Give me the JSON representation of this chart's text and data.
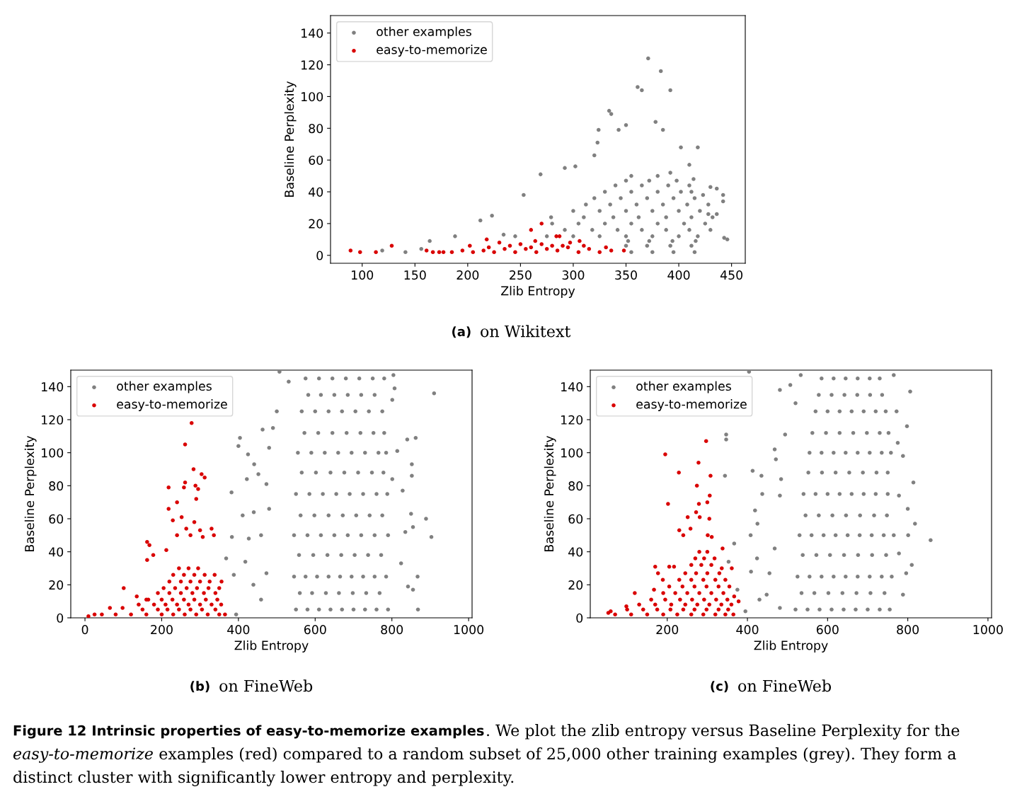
{
  "chart_data": [
    {
      "type": "scatter",
      "xlabel": "Zlib Entropy",
      "ylabel": "Baseline Perplexity",
      "xlim": [
        70,
        463
      ],
      "ylim": [
        -5,
        151
      ],
      "xticks": [
        100,
        150,
        200,
        250,
        300,
        350,
        400,
        450
      ],
      "yticks": [
        0,
        20,
        40,
        60,
        80,
        100,
        120,
        140
      ],
      "legend": "top left",
      "marker": "circle",
      "annotations": [
        "(a)",
        "on Wikitext"
      ],
      "series": [
        {
          "name": "other examples",
          "color": "#808080",
          "x": [
            371,
            383,
            361,
            365,
            392,
            334,
            336,
            378,
            324,
            350,
            343,
            418,
            402,
            323,
            320,
            385,
            292,
            269,
            302,
            253,
            223,
            212,
            188,
            164,
            119,
            141,
            156,
            430,
            436,
            442,
            442,
            446,
            443,
            428,
            436,
            423,
            410,
            414,
            392,
            234,
            279,
            355,
            375,
            395,
            415,
            350,
            370,
            392,
            412,
            245,
            275,
            300,
            325,
            350,
            375,
            400,
            418,
            280,
            305,
            330,
            355,
            380,
            405,
            425,
            300,
            325,
            350,
            375,
            400,
            420,
            320,
            345,
            370,
            395,
            415,
            340,
            365,
            390,
            410,
            355,
            380,
            352,
            372,
            394,
            416,
            292,
            318,
            342,
            365,
            388,
            410,
            430,
            310,
            338,
            362,
            388,
            412,
            432,
            312,
            335,
            360,
            385,
            408,
            428,
            330,
            355,
            380,
            402,
            412,
            350,
            372,
            398
          ],
          "values": [
            124,
            116,
            106,
            104,
            104,
            91,
            89,
            84,
            79,
            82,
            79,
            68,
            68,
            71,
            63,
            79,
            55,
            51,
            56,
            38,
            25,
            22,
            12,
            9,
            3,
            2,
            4,
            43,
            42,
            38,
            34,
            10,
            11,
            26,
            26,
            38,
            57,
            48,
            52,
            13,
            24,
            2,
            2,
            2,
            2,
            6,
            6,
            6,
            6,
            12,
            12,
            12,
            12,
            12,
            12,
            12,
            12,
            20,
            20,
            20,
            20,
            20,
            20,
            20,
            28,
            28,
            28,
            28,
            28,
            28,
            36,
            36,
            36,
            36,
            36,
            44,
            44,
            44,
            44,
            50,
            50,
            9,
            9,
            9,
            9,
            16,
            16,
            16,
            16,
            16,
            16,
            16,
            24,
            24,
            24,
            24,
            24,
            24,
            32,
            32,
            32,
            32,
            32,
            32,
            40,
            40,
            40,
            40,
            40,
            47,
            47,
            47
          ]
        },
        {
          "name": "easy-to-memorize",
          "color": "#d90000",
          "x": [
            89,
            98,
            113,
            128,
            161,
            167,
            173,
            177,
            270,
            260,
            218,
            284,
            287,
            306,
            348,
            336,
            202,
            230,
            264,
            331,
            297,
            185,
            195,
            205,
            215,
            225,
            235,
            245,
            255,
            265,
            275,
            285,
            295,
            305,
            315,
            325,
            240,
            250,
            270,
            290,
            310,
            220,
            280,
            260
          ],
          "values": [
            3,
            2,
            2,
            6,
            3,
            2,
            2,
            2,
            20,
            16,
            10,
            12,
            12,
            9,
            3,
            3,
            6,
            8,
            9,
            5,
            8,
            2,
            3,
            2,
            3,
            2,
            4,
            2,
            4,
            2,
            4,
            3,
            5,
            2,
            4,
            2,
            6,
            7,
            7,
            6,
            6,
            5,
            6,
            5
          ]
        }
      ]
    },
    {
      "type": "scatter",
      "xlabel": "Zlib Entropy",
      "ylabel": "Baseline Perplexity",
      "xlim": [
        -37,
        1009
      ],
      "ylim": [
        0,
        150
      ],
      "xticks": [
        0,
        200,
        400,
        600,
        800,
        1000
      ],
      "yticks": [
        0,
        20,
        40,
        60,
        80,
        100,
        120,
        140
      ],
      "legend": "top left",
      "marker": "circle",
      "annotations": [
        "(b)",
        "on FineWeb"
      ],
      "series": [
        {
          "name": "other examples",
          "color": "#808080",
          "x": [
            910,
            889,
            903,
            862,
            840,
            867,
            868,
            382,
            404,
            400,
            425,
            383,
            368,
            388,
            394,
            441,
            452,
            422,
            411,
            440,
            427,
            418,
            439,
            463,
            490,
            507,
            531,
            500,
            480,
            473,
            480,
            459,
            473,
            459,
            804,
            807,
            801,
            814,
            801,
            828,
            852,
            852,
            850,
            855,
            855,
            824,
            842,
            835,
            550,
            580,
            610,
            640,
            670,
            700,
            730,
            760,
            790,
            545,
            575,
            605,
            635,
            665,
            695,
            725,
            755,
            785,
            545,
            580,
            615,
            650,
            685,
            720,
            755,
            790,
            550,
            585,
            620,
            655,
            690,
            725,
            760,
            788,
            555,
            590,
            625,
            660,
            695,
            730,
            765,
            785,
            565,
            600,
            635,
            670,
            705,
            740,
            775,
            575,
            610,
            645,
            680,
            715,
            750,
            780,
            560,
            592,
            628,
            662,
            698,
            733,
            768,
            558,
            595,
            632,
            668,
            703,
            738,
            772,
            562,
            598,
            635,
            672,
            707,
            742,
            775,
            565,
            602,
            640,
            676,
            712,
            748,
            778,
            572,
            608,
            645,
            682,
            718,
            752,
            780,
            582,
            615,
            650,
            685,
            720,
            755
          ],
          "values": [
            136,
            60,
            49,
            109,
            108,
            25,
            5,
            76,
            109,
            104,
            99,
            49,
            36,
            26,
            2,
            93,
            87,
            84,
            62,
            64,
            48,
            34,
            20,
            114,
            115,
            149,
            143,
            125,
            103,
            81,
            66,
            50,
            27,
            11,
            147,
            139,
            132,
            101,
            84,
            77,
            93,
            86,
            63,
            55,
            17,
            33,
            19,
            52,
            5,
            5,
            5,
            5,
            5,
            5,
            5,
            5,
            5,
            25,
            25,
            25,
            25,
            25,
            25,
            25,
            25,
            25,
            50,
            50,
            50,
            50,
            50,
            50,
            50,
            50,
            75,
            75,
            75,
            75,
            75,
            75,
            75,
            75,
            100,
            100,
            100,
            100,
            100,
            100,
            100,
            100,
            125,
            125,
            125,
            125,
            125,
            125,
            125,
            145,
            145,
            145,
            145,
            145,
            145,
            145,
            15,
            15,
            15,
            15,
            15,
            15,
            15,
            38,
            38,
            38,
            38,
            38,
            38,
            38,
            62,
            62,
            62,
            62,
            62,
            62,
            62,
            88,
            88,
            88,
            88,
            88,
            88,
            88,
            112,
            112,
            112,
            112,
            112,
            112,
            112,
            135,
            135,
            135,
            135,
            135,
            135
          ]
        },
        {
          "name": "easy-to-memorize",
          "color": "#d90000",
          "x": [
            278,
            261,
            283,
            304,
            312,
            218,
            261,
            258,
            288,
            295,
            240,
            218,
            290,
            252,
            285,
            229,
            240,
            275,
            264,
            300,
            307,
            330,
            336,
            162,
            168,
            162,
            178,
            212,
            356,
            101,
            9,
            25,
            44,
            65,
            98,
            135,
            160,
            80,
            120,
            160,
            200,
            230,
            260,
            290,
            320,
            350,
            365,
            140,
            180,
            210,
            240,
            270,
            300,
            330,
            355,
            190,
            220,
            250,
            280,
            310,
            340,
            220,
            250,
            275,
            300,
            325,
            245,
            270,
            295,
            150,
            190,
            215,
            245,
            275,
            305,
            340,
            165,
            200,
            228,
            258,
            285,
            315,
            345,
            205,
            235,
            265,
            292,
            322,
            350,
            230,
            258,
            285,
            312,
            338
          ],
          "values": [
            118,
            105,
            90,
            87,
            85,
            79,
            82,
            79,
            80,
            78,
            70,
            66,
            72,
            61,
            58,
            59,
            50,
            50,
            54,
            53,
            49,
            54,
            50,
            46,
            44,
            35,
            38,
            41,
            22,
            18,
            1,
            2,
            2,
            6,
            6,
            13,
            11,
            2,
            2,
            2,
            2,
            2,
            2,
            2,
            2,
            2,
            2,
            8,
            8,
            8,
            8,
            8,
            8,
            8,
            8,
            15,
            15,
            15,
            15,
            15,
            15,
            22,
            22,
            22,
            22,
            22,
            30,
            30,
            30,
            5,
            5,
            5,
            5,
            5,
            5,
            5,
            11,
            11,
            11,
            11,
            11,
            11,
            11,
            18,
            18,
            18,
            18,
            18,
            18,
            26,
            26,
            26,
            26,
            26
          ]
        }
      ]
    },
    {
      "type": "scatter",
      "xlabel": "Zlib Entropy",
      "ylabel": "Baseline Perplexity",
      "xlim": [
        8,
        1009
      ],
      "ylim": [
        0,
        150
      ],
      "xticks": [
        200,
        400,
        600,
        800,
        1000
      ],
      "yticks": [
        0,
        20,
        40,
        60,
        80,
        100,
        120,
        140
      ],
      "legend": "top left",
      "marker": "circle",
      "annotations": [
        "(c)",
        "on FineWeb",
        "Figure 12",
        "Intrinsic properties of easy-to-memorize examples",
        ". We plot the zlib entropy versus Baseline Perplexity for the",
        "easy-to-memorize",
        "examples (red) compared to a random subset of 25,000 other training examples (grey). They form a",
        "distinct cluster with significantly lower entropy and perplexity."
      ],
      "series": [
        {
          "name": "other examples",
          "color": "#808080",
          "x": [
            857,
            814,
            810,
            806,
            798,
            818,
            800,
            788,
            801,
            796,
            788,
            765,
            404,
            347,
            347,
            344,
            367,
            353,
            375,
            395,
            413,
            435,
            437,
            419,
            425,
            408,
            424,
            409,
            430,
            468,
            481,
            507,
            471,
            481,
            484,
            468,
            455,
            448,
            481,
            533,
            520,
            494,
            772,
            775,
            778,
            778,
            520,
            550,
            580,
            610,
            640,
            670,
            700,
            730,
            755,
            525,
            555,
            585,
            615,
            645,
            675,
            705,
            735,
            760,
            530,
            560,
            590,
            620,
            650,
            680,
            710,
            740,
            765,
            540,
            570,
            600,
            630,
            660,
            690,
            720,
            750,
            555,
            585,
            615,
            645,
            675,
            705,
            735,
            758,
            570,
            600,
            630,
            660,
            690,
            720,
            745,
            585,
            615,
            645,
            675,
            705,
            730,
            535,
            567,
            602,
            637,
            672,
            707,
            742,
            538,
            572,
            606,
            641,
            676,
            711,
            746,
            545,
            578,
            612,
            646,
            681,
            716,
            748,
            552,
            586,
            620,
            654,
            688,
            722,
            750,
            562,
            596,
            630,
            664,
            698,
            730,
            752,
            578,
            610,
            642,
            674,
            706,
            736
          ],
          "values": [
            47,
            82,
            32,
            137,
            116,
            57,
            66,
            98,
            50,
            27,
            14,
            147,
            149,
            111,
            108,
            86,
            45,
            34,
            17,
            4,
            89,
            86,
            75,
            65,
            57,
            50,
            36,
            28,
            11,
            102,
            138,
            141,
            96,
            74,
            84,
            42,
            27,
            14,
            6,
            147,
            130,
            111,
            125,
            106,
            74,
            39,
            5,
            5,
            5,
            5,
            5,
            5,
            5,
            5,
            5,
            25,
            25,
            25,
            25,
            25,
            25,
            25,
            25,
            25,
            50,
            50,
            50,
            50,
            50,
            50,
            50,
            50,
            50,
            75,
            75,
            75,
            75,
            75,
            75,
            75,
            75,
            100,
            100,
            100,
            100,
            100,
            100,
            100,
            100,
            125,
            125,
            125,
            125,
            125,
            125,
            125,
            145,
            145,
            145,
            145,
            145,
            145,
            15,
            15,
            15,
            15,
            15,
            15,
            15,
            38,
            38,
            38,
            38,
            38,
            38,
            38,
            62,
            62,
            62,
            62,
            62,
            62,
            62,
            88,
            88,
            88,
            88,
            88,
            88,
            88,
            112,
            112,
            112,
            112,
            112,
            112,
            112,
            135,
            135,
            135,
            135,
            135,
            135
          ]
        },
        {
          "name": "easy-to-memorize",
          "color": "#d90000",
          "x": [
            297,
            195,
            278,
            229,
            308,
            274,
            202,
            306,
            300,
            279,
            272,
            251,
            281,
            305,
            258,
            230,
            240,
            301,
            311,
            338,
            361,
            336,
            170,
            205,
            217,
            177,
            189,
            167,
            119,
            98,
            59,
            53,
            378,
            367,
            70,
            110,
            150,
            190,
            225,
            260,
            290,
            320,
            345,
            365,
            130,
            170,
            210,
            245,
            275,
            305,
            335,
            360,
            190,
            220,
            250,
            280,
            310,
            340,
            230,
            260,
            290,
            320,
            345,
            260,
            285,
            310,
            280,
            300,
            100,
            140,
            175,
            208,
            240,
            268,
            298,
            328,
            352,
            160,
            195,
            232,
            262,
            292,
            322,
            350,
            205,
            238,
            268,
            298,
            328,
            355,
            245,
            272,
            300,
            330,
            270,
            292,
            318
          ],
          "values": [
            107,
            99,
            94,
            88,
            86,
            80,
            69,
            74,
            70,
            69,
            64,
            61,
            61,
            60,
            54,
            53,
            50,
            50,
            49,
            42,
            30,
            30,
            31,
            31,
            31,
            27,
            23,
            17,
            15,
            7,
            4,
            3,
            10,
            13,
            2,
            2,
            2,
            2,
            2,
            2,
            2,
            2,
            2,
            2,
            8,
            8,
            8,
            8,
            8,
            8,
            8,
            8,
            15,
            15,
            15,
            15,
            15,
            15,
            23,
            23,
            23,
            23,
            23,
            32,
            32,
            32,
            40,
            40,
            5,
            5,
            5,
            5,
            5,
            5,
            5,
            5,
            5,
            11,
            11,
            11,
            11,
            11,
            11,
            11,
            19,
            19,
            19,
            19,
            19,
            19,
            27,
            27,
            27,
            27,
            36,
            36,
            36
          ]
        }
      ]
    }
  ]
}
